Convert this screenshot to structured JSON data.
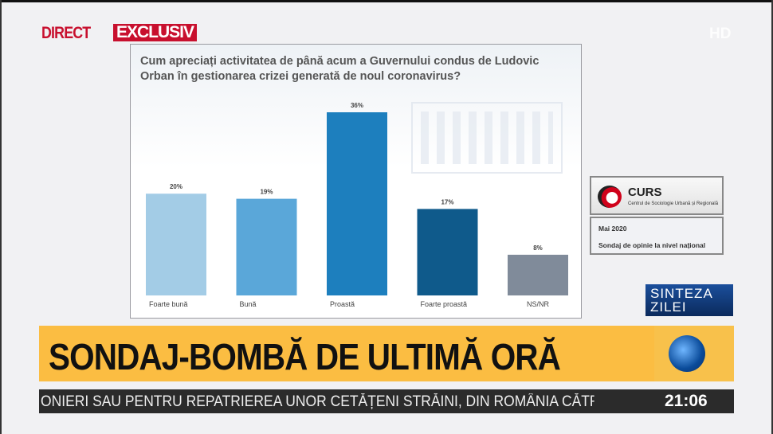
{
  "header": {
    "direct": "DIRECT",
    "exclusive": "EXCLUSIV",
    "hd": "HD"
  },
  "chart_data": {
    "type": "bar",
    "title": "Cum apreciați  activitatea de până acum a  Guvernului condus de Ludovic Orban în gestionarea crizei generată de noul coronavirus?",
    "categories": [
      "Foarte bună",
      "Bună",
      "Proastă",
      "Foarte proastă",
      "NS/NR"
    ],
    "values": [
      20,
      19,
      36,
      17,
      8
    ],
    "labels": [
      "20%",
      "19%",
      "36%",
      "17%",
      "8%"
    ],
    "colors": [
      "#a3cce6",
      "#5aa7d9",
      "#1d7fbe",
      "#0f5a8b",
      "#808b9a"
    ],
    "ylim": [
      0,
      36
    ],
    "xlabel": "",
    "ylabel": "",
    "grid": false
  },
  "source": {
    "name": "CURS",
    "subtitle": "Centrul de Sociologie Urbană și Regională",
    "date": "Mai 2020",
    "description": "Sondaj de opinie la nivel național"
  },
  "show": {
    "line1": "SINTEZA",
    "line2": "ZILEI"
  },
  "banner": {
    "headline": "SONDAJ-BOMBĂ DE ULTIMĂ ORĂ"
  },
  "ticker": {
    "text": "ONIERI SAU PENTRU REPATRIEREA UNOR CETĂȚENI STRĂINI, DIN ROMÂNIA CĂTRE AL",
    "time": "21:06"
  }
}
